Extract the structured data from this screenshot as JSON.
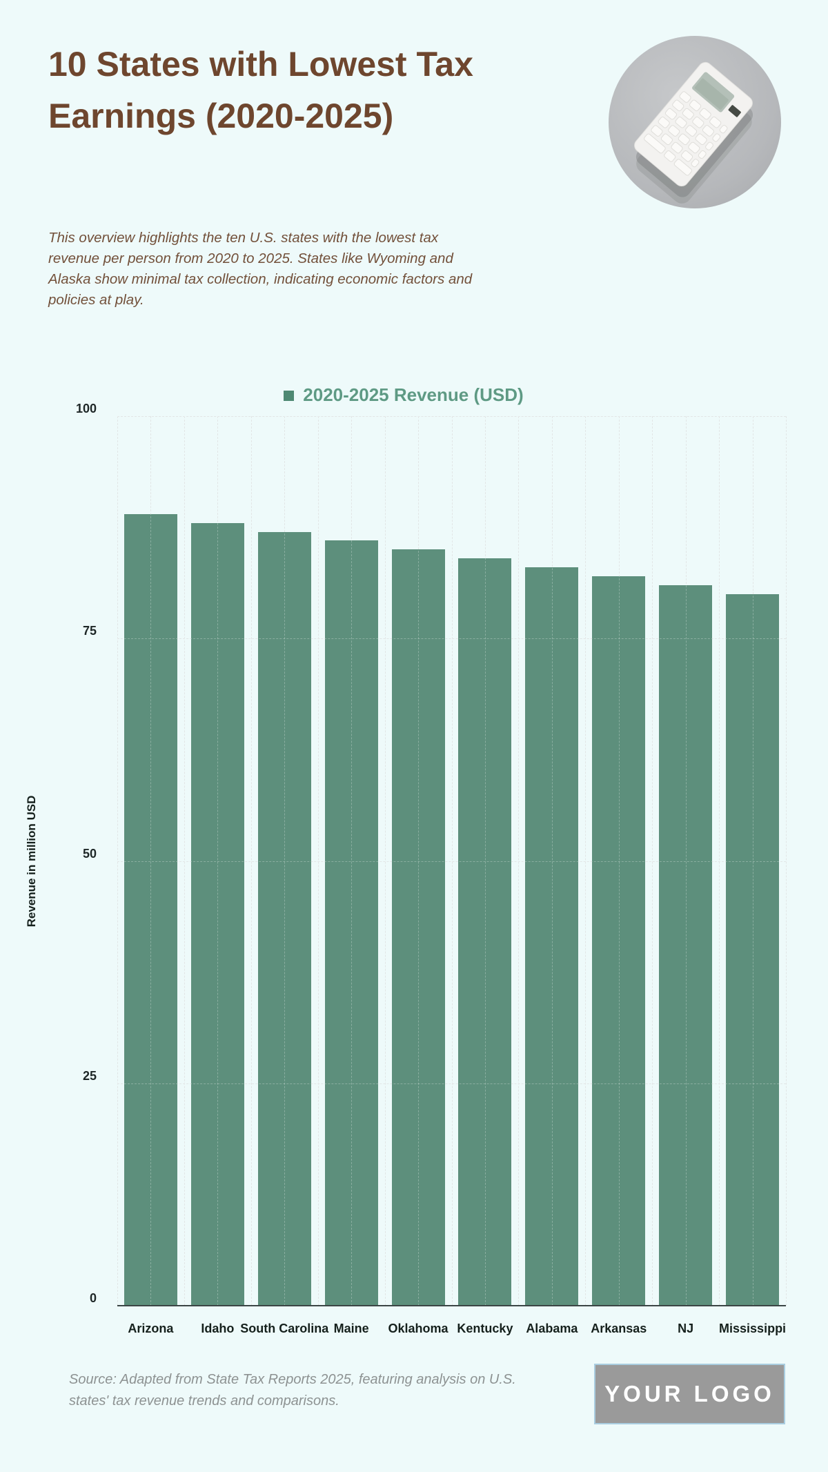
{
  "colors": {
    "background": "#eefafa",
    "title_brown": "#6e462e",
    "description_brown": "#72503a",
    "bar_green": "#5d8f7c",
    "legend_green": "#5e9a84",
    "legend_swatch_green": "#4e8973",
    "gridline_gray": "#d7dddd",
    "axis_dark": "#3b4545",
    "source_gray": "#8d9292",
    "logo_gray": "#9a9a9a",
    "logo_border_blue": "#a9cde0"
  },
  "header": {
    "title": "10 States with Lowest Tax Earnings (2020-2025)",
    "description": "This overview highlights the ten U.S. states with the lowest tax revenue per person from 2020 to 2025. States like Wyoming and Alaska show minimal tax collection, indicating economic factors and policies at play."
  },
  "hero": {
    "image_name": "calculator-photo"
  },
  "chart_data": {
    "type": "bar",
    "legend": "2020-2025 Revenue (USD)",
    "legend_position": "top",
    "categories": [
      "Arizona",
      "Idaho",
      "South Carolina",
      "Maine",
      "Oklahoma",
      "Kentucky",
      "Alabama",
      "Arkansas",
      "NJ",
      "Mississippi"
    ],
    "values": [
      89,
      88,
      87,
      86,
      85,
      84,
      83,
      82,
      81,
      80
    ],
    "ylabel": "Revenue in million USD",
    "xlabel": "",
    "yticks": [
      0,
      25,
      50,
      75,
      100
    ],
    "ylim": [
      0,
      100
    ],
    "grid": true,
    "bar_color": "#5d8f7c"
  },
  "footer": {
    "source": "Source: Adapted from State Tax Reports 2025, featuring analysis on U.S. states' tax revenue trends and comparisons.",
    "logo_text": "YOUR LOGO"
  }
}
